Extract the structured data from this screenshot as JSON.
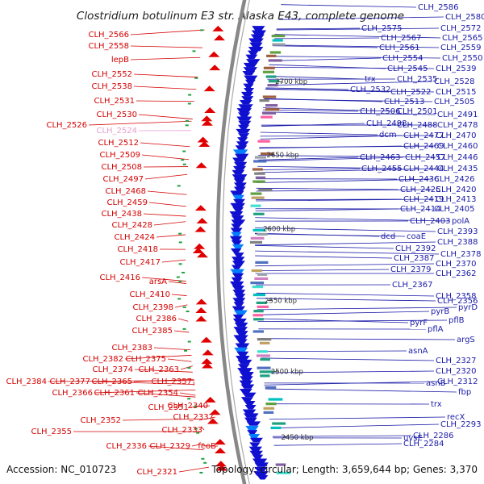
{
  "title": "Clostridium botulinum E3 str. Alaska E43, complete genome",
  "footer": {
    "accession": "Accession: NC_010723",
    "summary": "Topology: circular; Length: 3,659,644 bp; Genes: 3,370"
  },
  "ticks": [
    "2700 kbp",
    "2650 kbp",
    "2600 kbp",
    "2550 kbp",
    "2500 kbp",
    "2450 kbp"
  ],
  "left_labels": [
    {
      "t": "CLH_2566"
    },
    {
      "t": "CLH_2558"
    },
    {
      "t": "lepB"
    },
    {
      "t": "CLH_2552"
    },
    {
      "t": "CLH_2538"
    },
    {
      "t": "CLH_2531"
    },
    {
      "t": "CLH_2530"
    },
    {
      "t": "CLH_2526"
    },
    {
      "t": "CLH_2524",
      "pink": true
    },
    {
      "t": "CLH_2512"
    },
    {
      "t": "CLH_2509"
    },
    {
      "t": "CLH_2508"
    },
    {
      "t": "CLH_2497"
    },
    {
      "t": "CLH_2468"
    },
    {
      "t": "CLH_2459"
    },
    {
      "t": "CLH_2438"
    },
    {
      "t": "CLH_2428"
    },
    {
      "t": "CLH_2424"
    },
    {
      "t": "CLH_2418"
    },
    {
      "t": "CLH_2417"
    },
    {
      "t": "CLH_2416"
    },
    {
      "t": "arsA"
    },
    {
      "t": "CLH_2410"
    },
    {
      "t": "CLH_2398"
    },
    {
      "t": "CLH_2386"
    },
    {
      "t": "CLH_2385"
    },
    {
      "t": "CLH_2383"
    },
    {
      "t": "CLH_2382"
    },
    {
      "t": "CLH_2375"
    },
    {
      "t": "CLH_2374"
    },
    {
      "t": "CLH_2363"
    },
    {
      "t": "CLH_2384"
    },
    {
      "t": "CLH_2377"
    },
    {
      "t": "CLH_2365"
    },
    {
      "t": "CLH_2357"
    },
    {
      "t": "CLH_2366"
    },
    {
      "t": "CLH_2361"
    },
    {
      "t": "CLH_2354"
    },
    {
      "t": "CLH_2351"
    },
    {
      "t": "CLH_2340"
    },
    {
      "t": "CLH_2352"
    },
    {
      "t": "CLH_2337"
    },
    {
      "t": "CLH_2355"
    },
    {
      "t": "CLH_2333"
    },
    {
      "t": "CLH_2336"
    },
    {
      "t": "CLH_2329"
    },
    {
      "t": "feoB"
    },
    {
      "t": "CLH_2321"
    }
  ],
  "right_labels": [
    {
      "t": "CLH_2586"
    },
    {
      "t": "CLH_2580"
    },
    {
      "t": "CLH_2575"
    },
    {
      "t": "CLH_2572"
    },
    {
      "t": "CLH_2567"
    },
    {
      "t": "CLH_2565"
    },
    {
      "t": "CLH_2561"
    },
    {
      "t": "CLH_2559"
    },
    {
      "t": "CLH_2554"
    },
    {
      "t": "CLH_2550"
    },
    {
      "t": "CLH_2545"
    },
    {
      "t": "CLH_2539"
    },
    {
      "t": "trx"
    },
    {
      "t": "CLH_2535"
    },
    {
      "t": "CLH_2528"
    },
    {
      "t": "CLH_2532"
    },
    {
      "t": "CLH_2522"
    },
    {
      "t": "CLH_2515"
    },
    {
      "t": "CLH_2513"
    },
    {
      "t": "CLH_2505"
    },
    {
      "t": "CLH_2506"
    },
    {
      "t": "CLH_2501"
    },
    {
      "t": "CLH_2491"
    },
    {
      "t": "CLH_2498"
    },
    {
      "t": "CLH_2488"
    },
    {
      "t": "CLH_2478"
    },
    {
      "t": "dcm"
    },
    {
      "t": "CLH_2477"
    },
    {
      "t": "CLH_2470"
    },
    {
      "t": "CLH_2469"
    },
    {
      "t": "CLH_2460"
    },
    {
      "t": "CLH_2463"
    },
    {
      "t": "CLH_2457"
    },
    {
      "t": "CLH_2446"
    },
    {
      "t": "CLH_2455"
    },
    {
      "t": "CLH_2444"
    },
    {
      "t": "CLH_2435"
    },
    {
      "t": "CLH_2436"
    },
    {
      "t": "CLH_2426"
    },
    {
      "t": "CLH_2425"
    },
    {
      "t": "CLH_2420"
    },
    {
      "t": "CLH_2419"
    },
    {
      "t": "CLH_2413"
    },
    {
      "t": "CLH_2414"
    },
    {
      "t": "CLH_2405"
    },
    {
      "t": "CLH_2403"
    },
    {
      "t": "polA"
    },
    {
      "t": "dcd"
    },
    {
      "t": "coaE"
    },
    {
      "t": "CLH_2393"
    },
    {
      "t": "CLH_2388"
    },
    {
      "t": "CLH_2392"
    },
    {
      "t": "CLH_2378"
    },
    {
      "t": "CLH_2387"
    },
    {
      "t": "CLH_2370"
    },
    {
      "t": "CLH_2379"
    },
    {
      "t": "CLH_2362"
    },
    {
      "t": "CLH_2367"
    },
    {
      "t": "CLH_2358"
    },
    {
      "t": "CLH_2356"
    },
    {
      "t": "pyrD"
    },
    {
      "t": "pyrB"
    },
    {
      "t": "pflB"
    },
    {
      "t": "pyrF"
    },
    {
      "t": "pflA"
    },
    {
      "t": "argS"
    },
    {
      "t": "asnA"
    },
    {
      "t": "CLH_2327"
    },
    {
      "t": "CLH_2320"
    },
    {
      "t": "CLH_2312"
    },
    {
      "t": "asnB"
    },
    {
      "t": "fbp"
    },
    {
      "t": "trx"
    },
    {
      "t": "recX"
    },
    {
      "t": "CLH_2293"
    },
    {
      "t": "CLH_2286"
    },
    {
      "t": "uvsE"
    },
    {
      "t": "CLH_2284"
    }
  ],
  "colors": {
    "left_labels": "#d40000",
    "right_labels": "#1a1aa8",
    "forward_features": "#e00000",
    "reverse_features": "#1010d0",
    "backbone": "#888888"
  }
}
